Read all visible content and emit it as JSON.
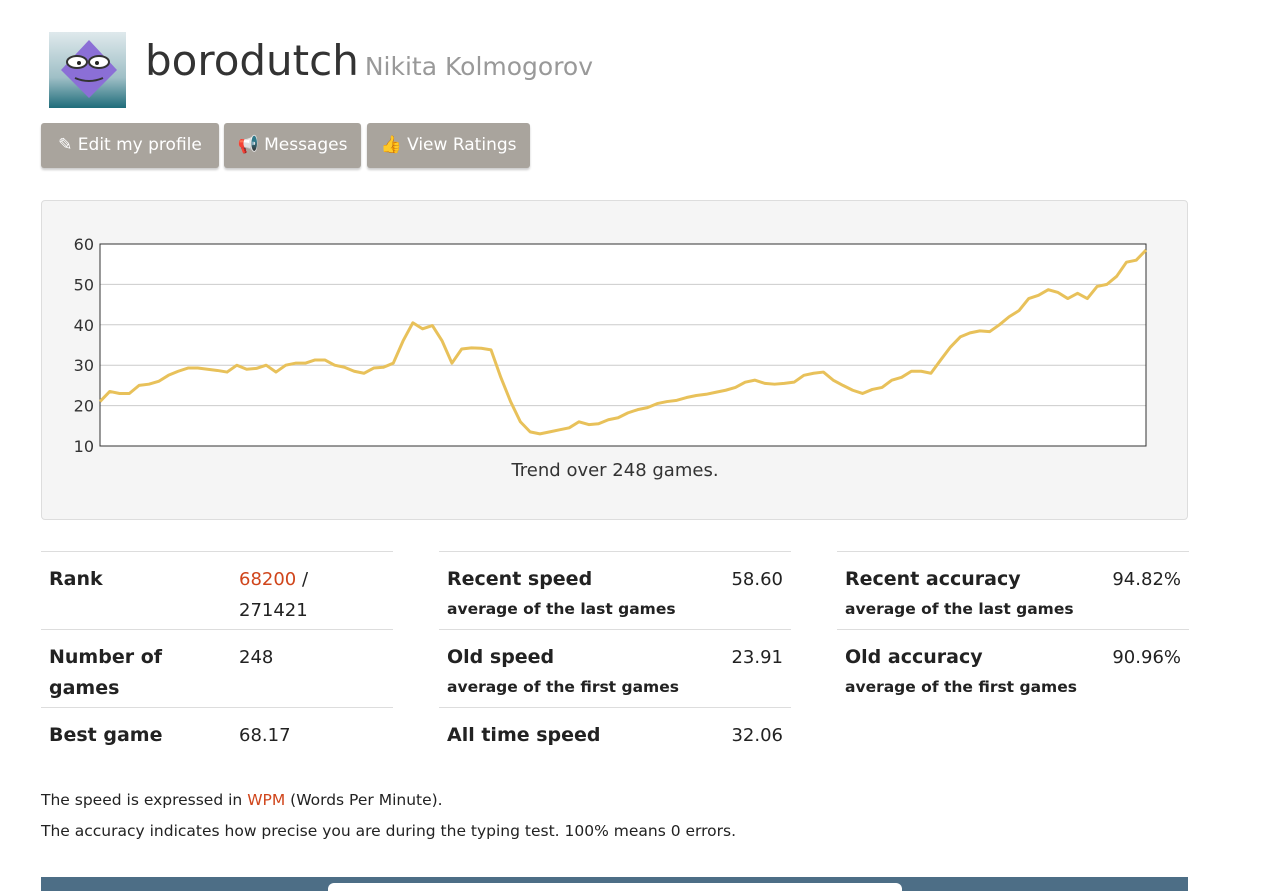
{
  "profile": {
    "username": "borodutch",
    "real_name": "Nikita Kolmogorov"
  },
  "buttons": [
    "Edit my profile",
    "Messages",
    "View Ratings"
  ],
  "chart": {
    "type": "line",
    "caption": "Trend over 248 games.",
    "color": "#e8c15a",
    "ylim": [
      10,
      60
    ],
    "yticks": [
      10,
      20,
      30,
      40,
      50,
      60
    ],
    "grid": true,
    "values": [
      21,
      23.5,
      23,
      23,
      25,
      25.3,
      26,
      27.5,
      28.5,
      29.3,
      29.3,
      29,
      28.7,
      28.3,
      30,
      29,
      29.2,
      30,
      28.3,
      30,
      30.5,
      30.5,
      31.3,
      31.3,
      30,
      29.5,
      28.5,
      28,
      29.3,
      29.5,
      30.5,
      36,
      40.5,
      39,
      39.8,
      36,
      30.5,
      34,
      34.3,
      34.2,
      33.8,
      27,
      21,
      16,
      13.5,
      13,
      13.5,
      14,
      14.5,
      16,
      15.3,
      15.5,
      16.5,
      17,
      18.2,
      19,
      19.5,
      20.5,
      21,
      21.3,
      22,
      22.5,
      22.8,
      23.3,
      23.8,
      24.5,
      25.8,
      26.3,
      25.5,
      25.3,
      25.5,
      25.8,
      27.5,
      28,
      28.3,
      26.3,
      25,
      23.8,
      23,
      24,
      24.5,
      26.3,
      27,
      28.5,
      28.5,
      28,
      31.3,
      34.5,
      37,
      38,
      38.5,
      38.3,
      40,
      42,
      43.5,
      46.5,
      47.3,
      48.7,
      48,
      46.5,
      47.8,
      46.5,
      49.5,
      50,
      52,
      55.5,
      56,
      58.5
    ]
  },
  "stats": {
    "rank": {
      "label": "Rank",
      "value": "68200",
      "separator": "/",
      "total": "271421"
    },
    "games": {
      "label": "Number of games",
      "value": "248"
    },
    "best": {
      "label": "Best game",
      "value": "68.17"
    },
    "recent_speed": {
      "label": "Recent speed",
      "note": "average of the last games",
      "value": "58.60"
    },
    "old_speed": {
      "label": "Old speed",
      "note": "average of the first games",
      "value": "23.91"
    },
    "all_speed": {
      "label": "All time speed",
      "value": "32.06"
    },
    "recent_acc": {
      "label": "Recent accuracy",
      "note": "average of the last games",
      "value": "94.82%"
    },
    "old_acc": {
      "label": "Old accuracy",
      "note": "average of the first games",
      "value": "90.96%"
    }
  },
  "footer": {
    "line1": [
      "The speed is expressed in",
      "WPM",
      "(Words Per Minute)."
    ],
    "line2": "The accuracy indicates how precise you are during the typing test. 100% means 0 errors."
  }
}
